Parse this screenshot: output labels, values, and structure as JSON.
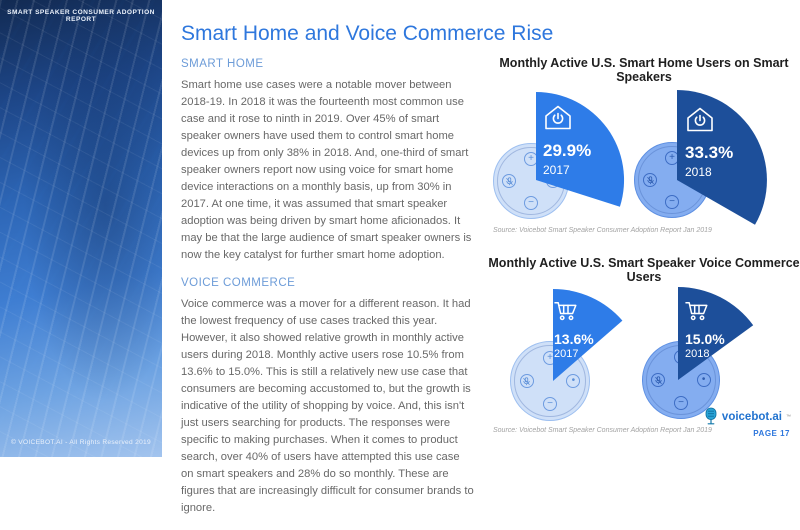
{
  "sidebar": {
    "top_label": "SMART SPEAKER CONSUMER ADOPTION REPORT",
    "footer": "© VOICEBOT.AI - All Rights Reserved 2019"
  },
  "page": {
    "title": "Smart Home and Voice Commerce Rise",
    "page_number": "PAGE 17",
    "brand": "voicebot.ai",
    "brand_tm": "™"
  },
  "sections": [
    {
      "heading": "SMART HOME",
      "body": "Smart home use cases were a notable mover between 2018-19. In 2018 it was the fourteenth most common use case and it rose to ninth in 2019. Over 45% of smart speaker owners have used them to control smart home devices up from only 38% in 2018. And, one-third of smart speaker owners report now using voice for smart home device interactions on a monthly basis, up from 30% in 2017. At one time, it was assumed that smart speaker adoption was being driven by smart home aficionados. It may be that the large audience of smart speaker owners is now the key catalyst for further smart home adoption."
    },
    {
      "heading": "VOICE COMMERCE",
      "body": "Voice commerce was a mover for a different reason. It had the lowest frequency of use cases tracked this year. However, it also showed relative growth in monthly active users during 2018. Monthly active users rose 10.5% from 13.6% to 15.0%. This is still a relatively new use case that consumers are becoming accustomed to, but the growth is indicative of the utility of shopping by voice. And, this isn't just users searching for products. The responses were specific to making purchases. When it comes to product search, over 40% of users have attempted this use case on smart speakers and 28% do so monthly. These are figures that are increasingly difficult for consumer brands to ignore."
    }
  ],
  "chart_data": [
    {
      "type": "pie",
      "title": "Monthly Active U.S. Smart Home Users on Smart Speakers",
      "icon": "smart-home-power-icon",
      "series": [
        {
          "label": "2017",
          "value": 29.9,
          "display": "29.9%",
          "color": "#2e7ce8"
        },
        {
          "label": "2018",
          "value": 33.3,
          "display": "33.3%",
          "color": "#1d4f9a"
        }
      ],
      "source": "Source: Voicebot Smart Speaker Consumer Adoption Report Jan 2019"
    },
    {
      "type": "pie",
      "title": "Monthly Active U.S. Smart Speaker Voice Commerce Users",
      "icon": "shopping-cart-icon",
      "series": [
        {
          "label": "2017",
          "value": 13.6,
          "display": "13.6%",
          "color": "#2e7ce8"
        },
        {
          "label": "2018",
          "value": 15.0,
          "display": "15.0%",
          "color": "#1d4f9a"
        }
      ],
      "source": "Source: Voicebot Smart Speaker Consumer Adoption Report Jan 2019"
    }
  ],
  "colors": {
    "accent_blue": "#2e7ce8",
    "dark_blue": "#1d4f9a",
    "speaker_light": "#cfe0f8",
    "speaker_mid": "#84adf0",
    "title_blue": "#2e77dd",
    "heading_blue": "#6d9cd8",
    "body_gray": "#686868"
  }
}
